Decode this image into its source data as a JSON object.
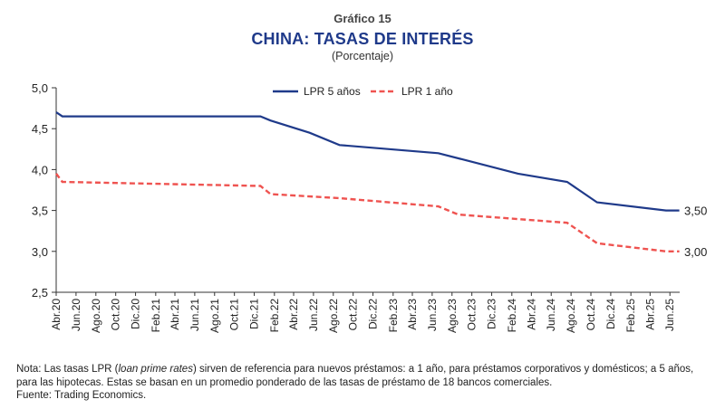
{
  "header": {
    "label": "Gráfico 15",
    "title": "CHINA: TASAS DE INTERÉS",
    "subtitle": "(Porcentaje)"
  },
  "note": {
    "prefix": "Nota: Las tasas LPR (",
    "italic": "loan prime rates",
    "suffix": ") sirven de referencia para nuevos préstamos: a 1 año, para préstamos corporativos y domésticos; a 5 años, para las hipotecas. Estas se basan en un promedio ponderado de las tasas de préstamo de 18 bancos comerciales.",
    "source": "Fuente: Trading Economics."
  },
  "chart_data": {
    "type": "line",
    "ylim": [
      2.5,
      5.0
    ],
    "yticks": [
      "5,0",
      "4,5",
      "4,0",
      "3,5",
      "3,0",
      "2,5"
    ],
    "ytick_values": [
      5.0,
      4.5,
      4.0,
      3.5,
      3.0,
      2.5
    ],
    "xticks": [
      "Abr.20",
      "Jun.20",
      "Ago.20",
      "Oct.20",
      "Dic.20",
      "Feb.21",
      "Abr.21",
      "Jun.21",
      "Ago.21",
      "Oct.21",
      "Dic.21",
      "Feb.22",
      "Abr.22",
      "Jun.22",
      "Ago.22",
      "Oct.22",
      "Dic.22",
      "Feb.23",
      "Abr.23",
      "Jun.23",
      "Ago.23",
      "Oct.23",
      "Dic.23",
      "Feb.24",
      "Abr.24",
      "Jun.24",
      "Ago.24",
      "Oct.24",
      "Dic.24",
      "Feb.25",
      "Abr.25",
      "Jun.25"
    ],
    "legend": "top",
    "series": [
      {
        "name": "LPR 5 años",
        "color": "#1f3a8a",
        "style": "solid",
        "end_label": "3,50",
        "points": [
          [
            "2020-04-01",
            4.7
          ],
          [
            "2020-04-20",
            4.65
          ],
          [
            "2021-12-20",
            4.65
          ],
          [
            "2022-01-20",
            4.6
          ],
          [
            "2022-05-20",
            4.45
          ],
          [
            "2022-08-20",
            4.3
          ],
          [
            "2023-06-20",
            4.2
          ],
          [
            "2024-02-20",
            3.95
          ],
          [
            "2024-07-20",
            3.85
          ],
          [
            "2024-10-20",
            3.6
          ],
          [
            "2025-05-20",
            3.5
          ],
          [
            "2025-06-30",
            3.5
          ]
        ]
      },
      {
        "name": "LPR 1 año",
        "color": "#ef5350",
        "style": "dashed",
        "end_label": "3,00",
        "points": [
          [
            "2020-04-01",
            3.95
          ],
          [
            "2020-04-20",
            3.85
          ],
          [
            "2021-12-20",
            3.8
          ],
          [
            "2022-01-20",
            3.7
          ],
          [
            "2022-08-20",
            3.65
          ],
          [
            "2023-06-20",
            3.55
          ],
          [
            "2023-08-20",
            3.45
          ],
          [
            "2024-07-20",
            3.35
          ],
          [
            "2024-10-20",
            3.1
          ],
          [
            "2025-05-20",
            3.0
          ],
          [
            "2025-06-30",
            3.0
          ]
        ]
      }
    ]
  }
}
